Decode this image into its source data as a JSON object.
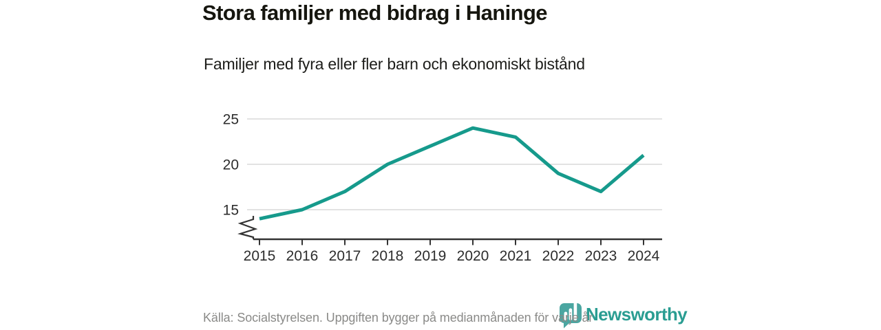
{
  "chart_data": {
    "type": "line",
    "title": "Stora familjer med bidrag i Haninge",
    "subtitle": "Familjer med fyra eller fler barn och ekonomiskt bistånd",
    "source": "Källa: Socialstyrelsen. Uppgiften bygger på medianmånaden för varje år",
    "categories": [
      "2015",
      "2016",
      "2017",
      "2018",
      "2019",
      "2020",
      "2021",
      "2022",
      "2023",
      "2024"
    ],
    "values": [
      14,
      15,
      17,
      20,
      22,
      24,
      23,
      19,
      17,
      21
    ],
    "yticks": [
      15,
      20,
      25
    ],
    "ylim": [
      13,
      26
    ],
    "axis_break": true,
    "grid": true,
    "legend": "none",
    "xlabel": "",
    "ylabel": "",
    "line_color": "#169a8c",
    "grid_color": "#d9d9d9",
    "axis_color": "#333333",
    "tick_label_color": "#2d2d2d"
  },
  "branding": {
    "logo_text": "Newsworthy",
    "logo_icon": "bar-chart-bubble-icon",
    "brand_color": "#2a9d92"
  }
}
